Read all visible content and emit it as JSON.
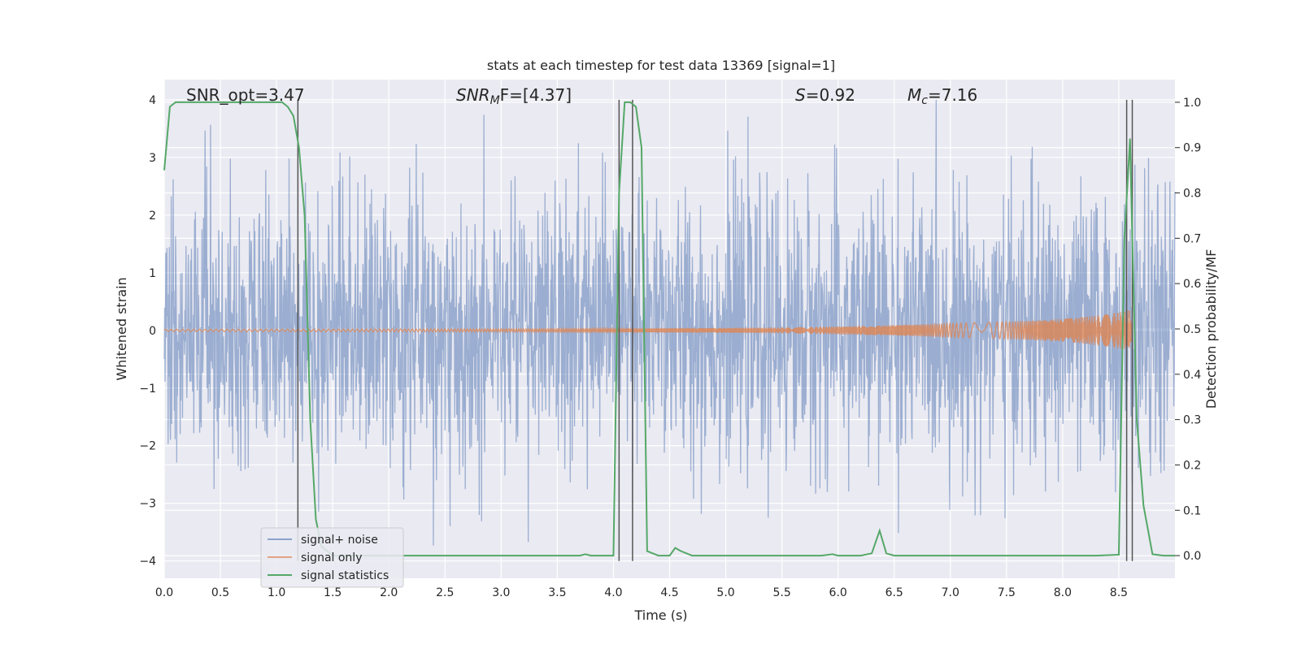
{
  "chart_data": {
    "type": "line",
    "title": "stats at each timestep for test data 13369 [signal=1]",
    "xlabel": "Time (s)",
    "ylabel_left": "Whitened strain",
    "ylabel_right": "Detection probability/MF",
    "xlim": [
      0.0,
      9.0
    ],
    "ylim_left": [
      -4.3,
      4.35
    ],
    "ylim_right": [
      -0.05,
      1.05
    ],
    "x_ticks": [
      0.0,
      0.5,
      1.0,
      1.5,
      2.0,
      2.5,
      3.0,
      3.5,
      4.0,
      4.5,
      5.0,
      5.5,
      6.0,
      6.5,
      7.0,
      7.5,
      8.0,
      8.5
    ],
    "x_tick_labels": [
      "0.0",
      "0.5",
      "1.0",
      "1.5",
      "2.0",
      "2.5",
      "3.0",
      "3.5",
      "4.0",
      "4.5",
      "5.0",
      "5.5",
      "6.0",
      "6.5",
      "7.0",
      "7.5",
      "8.0",
      "8.5"
    ],
    "y_left_ticks": [
      4,
      3,
      2,
      1,
      0,
      -1,
      -2,
      -3,
      -4
    ],
    "y_left_tick_labels": [
      "4",
      "3",
      "2",
      "1",
      "0",
      "−1",
      "−2",
      "−3",
      "−4"
    ],
    "y_right_ticks": [
      1.0,
      0.9,
      0.8,
      0.7,
      0.6,
      0.5,
      0.4,
      0.3,
      0.2,
      0.1,
      0.0
    ],
    "y_right_tick_labels": [
      "1.0",
      "0.9",
      "0.8",
      "0.7",
      "0.6",
      "0.5",
      "0.4",
      "0.3",
      "0.2",
      "0.1",
      "0.0"
    ],
    "grid": true,
    "legend_position": "lower-left",
    "annotations": {
      "snr_opt": "SNR_opt=3.47",
      "snr_mf_base": "SNR",
      "snr_mf_sub": "M",
      "snr_mf_rest": "F=[4.37]",
      "s_var": "S",
      "s_rest": "=0.92",
      "mc_base": "M",
      "mc_sub": "c",
      "mc_rest": "=7.16"
    },
    "series": [
      {
        "name": "signal+ noise",
        "color": "#4c72b0",
        "noise_std": 0.75,
        "x_range": [
          0.0,
          9.0
        ]
      },
      {
        "name": "signal only",
        "color": "#dd8452",
        "amplitude_envelope": [
          [
            0.0,
            0.02
          ],
          [
            4.0,
            0.03
          ],
          [
            5.5,
            0.05
          ],
          [
            6.5,
            0.09
          ],
          [
            7.5,
            0.15
          ],
          [
            8.0,
            0.2
          ],
          [
            8.3,
            0.26
          ],
          [
            8.5,
            0.32
          ],
          [
            8.6,
            0.35
          ],
          [
            8.62,
            0.0
          ]
        ]
      },
      {
        "name": "signal statistics",
        "color": "#55a868",
        "x": [
          0.0,
          0.05,
          0.1,
          0.2,
          0.3,
          0.5,
          0.7,
          0.9,
          1.0,
          1.05,
          1.1,
          1.15,
          1.2,
          1.25,
          1.3,
          1.35,
          1.4,
          1.5,
          2.0,
          2.5,
          3.0,
          3.5,
          3.7,
          3.75,
          3.8,
          4.0,
          4.05,
          4.1,
          4.15,
          4.2,
          4.25,
          4.3,
          4.4,
          4.5,
          4.55,
          4.6,
          4.7,
          5.0,
          5.5,
          5.85,
          5.95,
          6.0,
          6.2,
          6.3,
          6.37,
          6.43,
          6.5,
          7.0,
          7.5,
          8.0,
          8.3,
          8.5,
          8.55,
          8.6,
          8.62,
          8.66,
          8.72,
          8.8,
          8.9,
          9.0
        ],
        "y": [
          0.85,
          0.99,
          1.0,
          1.0,
          1.0,
          1.0,
          1.0,
          1.0,
          1.0,
          1.0,
          0.99,
          0.97,
          0.9,
          0.75,
          0.3,
          0.08,
          0.02,
          0.0,
          0.0,
          0.0,
          0.0,
          0.0,
          0.0,
          0.003,
          0.0,
          0.0,
          0.8,
          1.0,
          1.0,
          0.99,
          0.9,
          0.01,
          0.0,
          0.0,
          0.017,
          0.01,
          0.0,
          0.0,
          0.0,
          0.0,
          0.003,
          0.0,
          0.0,
          0.005,
          0.055,
          0.005,
          0.0,
          0.0,
          0.0,
          0.0,
          0.0,
          0.002,
          0.7,
          0.92,
          0.7,
          0.3,
          0.11,
          0.003,
          0.0,
          0.0
        ]
      }
    ],
    "vertical_markers": [
      1.19,
      4.05,
      4.17,
      8.57,
      8.62
    ],
    "marker_ranges": [
      [
        1.19,
        -4.0,
        4.0
      ],
      [
        4.05,
        -4.0,
        4.0
      ],
      [
        4.17,
        -4.0,
        4.0
      ],
      [
        8.57,
        -4.0,
        4.0
      ],
      [
        8.62,
        -4.0,
        4.0
      ]
    ]
  }
}
